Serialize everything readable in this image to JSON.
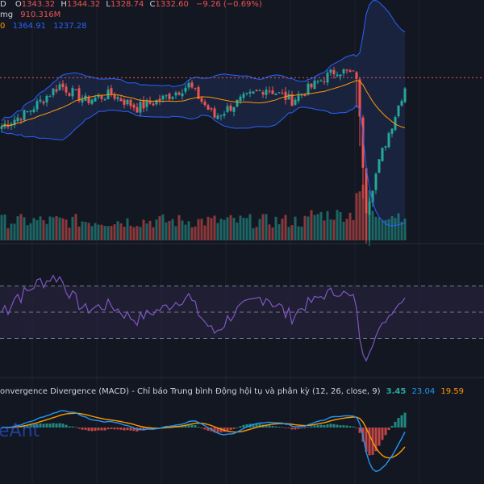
{
  "header": {
    "symbol_fragment": "D",
    "open_label": "O",
    "open": "1343.32",
    "high_label": "H",
    "high": "1344.32",
    "low_label": "L",
    "low": "1328.74",
    "close_label": "C",
    "close": "1332.60",
    "change": "−9.26 (−0.69%)",
    "vol_label": "mg",
    "vol_value": "910.316M",
    "bb_fragment": "0",
    "bb_upper": "1364.91",
    "bb_lower": "1237.28",
    "macd_title": "onvergence Divergence (MACD) - Chỉ báo Trung bình Động hội tụ và phân kỳ (12, 26, close, 9)",
    "macd_hist": "3.45",
    "macd_line": "23.04",
    "macd_signal": "19.59",
    "watermark": "eAnt"
  },
  "colors": {
    "background": "#131722",
    "up": "#26a69a",
    "down": "#ef5350",
    "bb_band": "#2962ff",
    "bb_fill": "#1c2a4a",
    "bb_basis": "#ff9800",
    "rsi_line": "#7e57c2",
    "rsi_band": "#2a2340",
    "macd_line": "#2196f3",
    "signal_line": "#ff9800",
    "hist_up": "#26a69a",
    "hist_down": "#ef5350",
    "price_line": "#ef5350"
  },
  "chart_data": [
    {
      "type": "candlestick",
      "panel": "price",
      "x_count": 126,
      "close_anchors": [
        [
          0,
          1290
        ],
        [
          8,
          1305
        ],
        [
          18,
          1335
        ],
        [
          26,
          1318
        ],
        [
          34,
          1325
        ],
        [
          42,
          1310
        ],
        [
          50,
          1320
        ],
        [
          58,
          1335
        ],
        [
          66,
          1300
        ],
        [
          74,
          1318
        ],
        [
          82,
          1332
        ],
        [
          90,
          1318
        ],
        [
          98,
          1338
        ],
        [
          104,
          1352
        ],
        [
          110,
          1345
        ],
        [
          113,
          1200
        ],
        [
          118,
          1262
        ],
        [
          125,
          1333
        ]
      ],
      "price_line_value": 1343,
      "indicators": [
        "Bollinger Bands upper",
        "Bollinger Bands basis",
        "Bollinger Bands lower",
        "Volume"
      ]
    },
    {
      "type": "line",
      "panel": "RSI",
      "levels": [
        70,
        50,
        30
      ],
      "ylim": [
        10,
        90
      ]
    },
    {
      "type": "line+histogram",
      "panel": "MACD",
      "params": "12, 26, close, 9",
      "series": [
        {
          "name": "Histogram",
          "last": 3.45
        },
        {
          "name": "MACD",
          "last": 23.04
        },
        {
          "name": "Signal",
          "last": 19.59
        }
      ]
    }
  ]
}
